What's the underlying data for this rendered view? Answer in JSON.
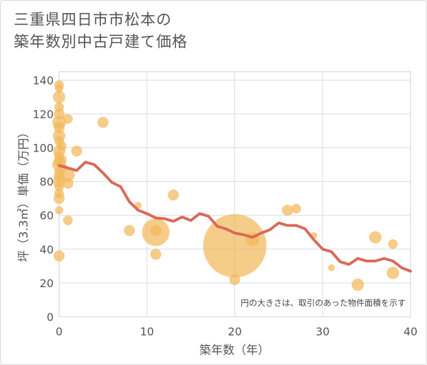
{
  "chart_data": {
    "type": "scatter",
    "title_line1": "三重県四日市市松本の",
    "title_line2": "築年数別中古戸建て価格",
    "xlabel": "築年数（年）",
    "ylabel": "坪（3.3㎡）単価（万円）",
    "xlim": [
      0,
      40
    ],
    "ylim": [
      0,
      145
    ],
    "xticks": [
      0,
      10,
      20,
      30,
      40
    ],
    "yticks": [
      0,
      20,
      40,
      60,
      80,
      100,
      120,
      140
    ],
    "note": "円の大きさは、取引のあった物件面積を示す",
    "colors": {
      "bubble": "#f3b95c",
      "line": "#d9695a",
      "grid": "#d5dbe6",
      "axis_text": "#555555"
    },
    "bubbles": [
      {
        "x": 0,
        "y": 137,
        "s": 7
      },
      {
        "x": 0,
        "y": 135,
        "s": 6
      },
      {
        "x": 0,
        "y": 130,
        "s": 9
      },
      {
        "x": 0,
        "y": 124,
        "s": 7
      },
      {
        "x": 0,
        "y": 120,
        "s": 8
      },
      {
        "x": 0,
        "y": 115,
        "s": 10
      },
      {
        "x": 0,
        "y": 112,
        "s": 8
      },
      {
        "x": 0,
        "y": 107,
        "s": 9
      },
      {
        "x": 0,
        "y": 104,
        "s": 7
      },
      {
        "x": 0,
        "y": 98,
        "s": 9
      },
      {
        "x": 0,
        "y": 95,
        "s": 7
      },
      {
        "x": 0,
        "y": 92,
        "s": 8
      },
      {
        "x": 0,
        "y": 90,
        "s": 10
      },
      {
        "x": 0,
        "y": 86,
        "s": 7
      },
      {
        "x": 0,
        "y": 83,
        "s": 8
      },
      {
        "x": 0,
        "y": 80,
        "s": 9
      },
      {
        "x": 0,
        "y": 77,
        "s": 7
      },
      {
        "x": 0,
        "y": 73,
        "s": 7
      },
      {
        "x": 0,
        "y": 70,
        "s": 8
      },
      {
        "x": 0,
        "y": 63,
        "s": 6
      },
      {
        "x": 0,
        "y": 36,
        "s": 8
      },
      {
        "x": 0.3,
        "y": 101,
        "s": 7
      },
      {
        "x": 0.4,
        "y": 93,
        "s": 6
      },
      {
        "x": 0.5,
        "y": 88,
        "s": 6
      },
      {
        "x": 1,
        "y": 117,
        "s": 7
      },
      {
        "x": 1,
        "y": 84,
        "s": 10
      },
      {
        "x": 1,
        "y": 79,
        "s": 8
      },
      {
        "x": 1,
        "y": 57,
        "s": 7
      },
      {
        "x": 2,
        "y": 98,
        "s": 8
      },
      {
        "x": 5,
        "y": 115,
        "s": 8
      },
      {
        "x": 8,
        "y": 51,
        "s": 8
      },
      {
        "x": 9,
        "y": 66,
        "s": 5
      },
      {
        "x": 11,
        "y": 50,
        "s": 20
      },
      {
        "x": 11,
        "y": 51,
        "s": 8
      },
      {
        "x": 11,
        "y": 37,
        "s": 8
      },
      {
        "x": 13,
        "y": 72,
        "s": 8
      },
      {
        "x": 20,
        "y": 42,
        "s": 46
      },
      {
        "x": 20,
        "y": 22,
        "s": 8
      },
      {
        "x": 22,
        "y": 46,
        "s": 10
      },
      {
        "x": 26,
        "y": 63,
        "s": 8
      },
      {
        "x": 27,
        "y": 64,
        "s": 7
      },
      {
        "x": 29,
        "y": 48,
        "s": 5
      },
      {
        "x": 31,
        "y": 29,
        "s": 5
      },
      {
        "x": 34,
        "y": 19,
        "s": 9
      },
      {
        "x": 36,
        "y": 47,
        "s": 9
      },
      {
        "x": 38,
        "y": 43,
        "s": 7
      },
      {
        "x": 38,
        "y": 26,
        "s": 9
      }
    ],
    "trend": {
      "x": [
        0,
        1,
        2,
        3,
        4,
        5,
        6,
        7,
        8,
        9,
        10,
        11,
        12,
        13,
        14,
        15,
        16,
        17,
        18,
        19,
        20,
        21,
        22,
        23,
        24,
        25,
        26,
        27,
        28,
        29,
        30,
        31,
        32,
        33,
        34,
        35,
        36,
        37,
        38,
        39,
        40
      ],
      "y": [
        89.5,
        88,
        86.5,
        91.5,
        90,
        85,
        79.5,
        77,
        68,
        63,
        61,
        58.5,
        58,
        56.5,
        59,
        57,
        61,
        59.5,
        53.5,
        52,
        49.5,
        48.5,
        47,
        49.5,
        51.5,
        55.5,
        54,
        54,
        52,
        45.5,
        40,
        38.5,
        32.5,
        31,
        34.5,
        33,
        33,
        34.5,
        33,
        29,
        27
      ]
    }
  }
}
